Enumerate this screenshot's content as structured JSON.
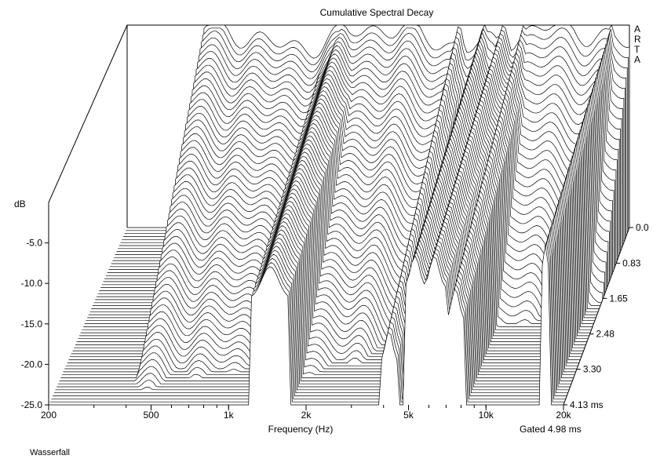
{
  "chart_data": {
    "type": "waterfall",
    "title": "Cumulative Spectral Decay",
    "xlabel": "Frequency (Hz)",
    "ylabel": "dB",
    "x_scale": "log",
    "xlim": [
      200,
      20000
    ],
    "ylim": [
      -25.0,
      0.0
    ],
    "x_tick_labels": [
      "200",
      "500",
      "1k",
      "2k",
      "5k",
      "10k",
      "20k"
    ],
    "x_tick_values": [
      200,
      500,
      1000,
      2000,
      5000,
      10000,
      20000
    ],
    "y_tick_labels": [
      "-5.0",
      "-10.0",
      "-15.0",
      "-20.0",
      "-25.0"
    ],
    "y_tick_values": [
      -5.0,
      -10.0,
      -15.0,
      -20.0,
      -25.0
    ],
    "z_label_top": "0.0",
    "z_tick_labels": [
      "0.83",
      "1.65",
      "2.48",
      "3.30",
      "4.13 ms"
    ],
    "z_tick_values": [
      0.83,
      1.65,
      2.48,
      3.3,
      4.13
    ],
    "gate_label": "Gated 4.98 ms",
    "brand": [
      "A",
      "R",
      "T",
      "A"
    ],
    "footer": "Wasserfall",
    "slices": 60,
    "grid": false,
    "line_color": "#000000",
    "fill_color": "#ffffff"
  }
}
